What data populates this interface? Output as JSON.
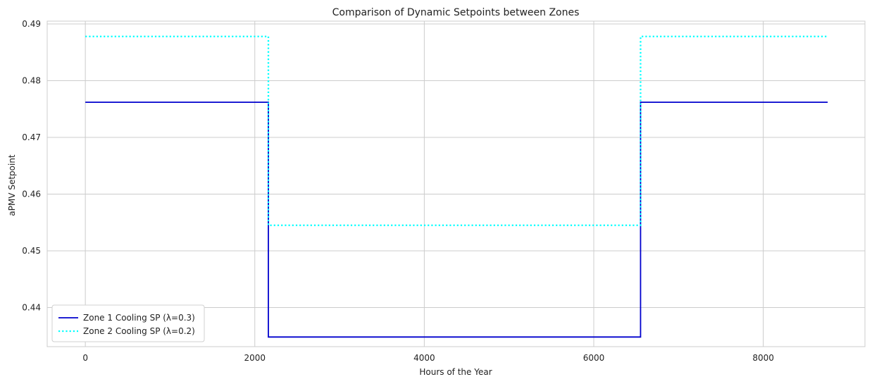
{
  "chart_data": {
    "type": "line",
    "title": "Comparison of Dynamic Setpoints between Zones",
    "xlabel": "Hours of the Year",
    "ylabel": "aPMV Setpoint",
    "xlim": [
      -450,
      9200
    ],
    "ylim": [
      0.4331,
      0.4905
    ],
    "xticks": [
      0,
      2000,
      4000,
      6000,
      8000
    ],
    "xtick_labels": [
      "0",
      "2000",
      "4000",
      "6000",
      "8000"
    ],
    "yticks": [
      0.44,
      0.45,
      0.46,
      0.47,
      0.48,
      0.49
    ],
    "ytick_labels": [
      "0.44",
      "0.45",
      "0.46",
      "0.47",
      "0.48",
      "0.49"
    ],
    "grid": true,
    "legend_position": "lower-left",
    "series": [
      {
        "name": "Zone 1 Cooling SP (λ=0.3)",
        "color": "#0000cd",
        "style": "solid",
        "x": [
          0,
          2160,
          2160,
          6552,
          6552,
          8760
        ],
        "y": [
          0.4762,
          0.4762,
          0.4348,
          0.4348,
          0.4762,
          0.4762
        ]
      },
      {
        "name": "Zone 2 Cooling SP (λ=0.2)",
        "color": "#00ffff",
        "style": "dotted",
        "x": [
          0,
          2160,
          2160,
          6552,
          6552,
          8760
        ],
        "y": [
          0.4878,
          0.4878,
          0.4545,
          0.4545,
          0.4878,
          0.4878
        ]
      }
    ]
  }
}
